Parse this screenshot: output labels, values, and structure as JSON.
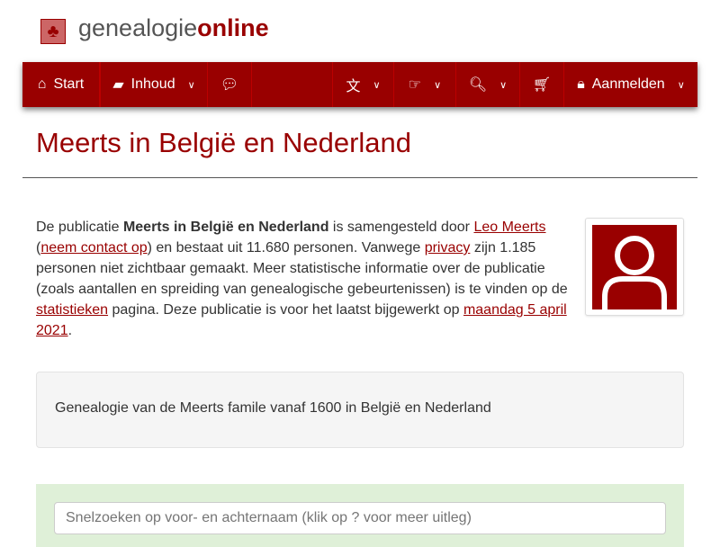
{
  "brand": {
    "part1": "genealogie",
    "part2": "online"
  },
  "nav": {
    "start": "Start",
    "inhoud": "Inhoud",
    "login": "Aanmelden"
  },
  "title": "Meerts in België en Nederland",
  "intro": {
    "t1": "De publicatie ",
    "pub": "Meerts in België en Nederland",
    "t2": " is samengesteld door ",
    "author": "Leo Meerts",
    "t3": "(",
    "contact": "neem contact op",
    "t4": ") en bestaat uit 11.680 personen. Vanwege ",
    "privacy": "privacy",
    "t5": " zijn 1.185 personen niet zichtbaar gemaakt. Meer statistische informatie over de publicatie (zoals aantallen en spreiding van genealogische gebeurtenissen) is te vinden op de ",
    "stats": "statistieken",
    "t6": " pagina. Deze publicatie is voor het laatst bijgewerkt op ",
    "date": "maandag 5 april 2021",
    "t7": "."
  },
  "description": "Genealogie van de Meerts famile vanaf 1600 in België en Nederland",
  "search": {
    "placeholder": "Snelzoeken op voor- en achternaam (klik op ? voor meer uitleg)"
  },
  "colors": {
    "accent": "#990000",
    "well": "#f5f5f5",
    "search_bg": "#dff0d8"
  }
}
